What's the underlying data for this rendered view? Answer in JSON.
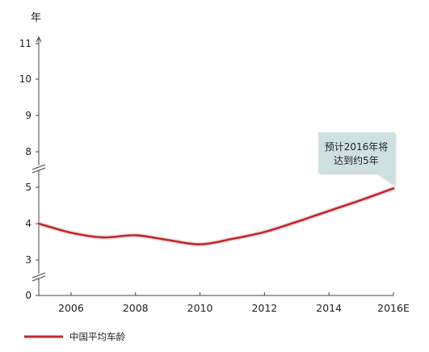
{
  "chart_data": {
    "type": "line",
    "y_unit": "年",
    "x": [
      2005,
      2006,
      2007,
      2008,
      2009,
      2010,
      2011,
      2012,
      2013,
      2014,
      2015,
      2016
    ],
    "x_ticks": [
      {
        "value": 2006,
        "label": "2006"
      },
      {
        "value": 2008,
        "label": "2008"
      },
      {
        "value": 2010,
        "label": "2010"
      },
      {
        "value": 2012,
        "label": "2012"
      },
      {
        "value": 2014,
        "label": "2014"
      },
      {
        "value": 2016,
        "label": "2016E"
      }
    ],
    "xlim": [
      2005,
      2016
    ],
    "y_ticks": [
      {
        "value": 0,
        "label": "0"
      },
      {
        "value": 3,
        "label": "3"
      },
      {
        "value": 4,
        "label": "4"
      },
      {
        "value": 5,
        "label": "5"
      },
      {
        "value": 8,
        "label": "8"
      },
      {
        "value": 9,
        "label": "9"
      },
      {
        "value": 10,
        "label": "10"
      },
      {
        "value": 11,
        "label": "11"
      }
    ],
    "y_axis_breaks": [
      [
        0,
        3
      ],
      [
        5,
        8
      ]
    ],
    "series": [
      {
        "name": "中国平均车龄",
        "color": "#c0272d",
        "values": [
          4.0,
          3.75,
          3.62,
          3.68,
          3.55,
          3.43,
          3.58,
          3.77,
          4.05,
          4.35,
          4.65,
          4.97
        ]
      }
    ],
    "annotations": [
      {
        "x": 2016,
        "y": 4.97,
        "lines": [
          "预计2016年将",
          "达到约5年"
        ]
      }
    ],
    "legend_position": "bottom-left",
    "grid": false
  }
}
